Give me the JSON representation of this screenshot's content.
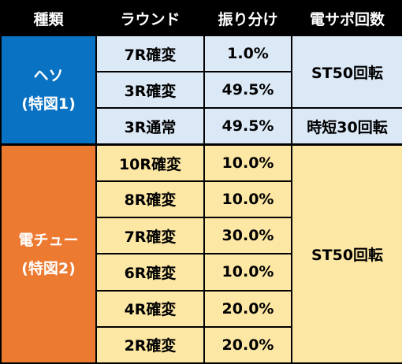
{
  "headers": [
    "種類",
    "ラウンド",
    "振り分け",
    "電サポ回数"
  ],
  "heso": {
    "label_line1": "ヘソ",
    "label_line2": "(特図1)",
    "rows": [
      {
        "round": "7R確変",
        "share": "1.0%"
      },
      {
        "round": "3R確変",
        "share": "49.5%"
      },
      {
        "round": "3R通常",
        "share": "49.5%"
      }
    ],
    "support_a": "ST50回転",
    "support_b": "時短30回転"
  },
  "denchu": {
    "label_line1": "電チュー",
    "label_line2": "(特図2)",
    "rows": [
      {
        "round": "10R確変",
        "share": "10.0%"
      },
      {
        "round": "8R確変",
        "share": "10.0%"
      },
      {
        "round": "7R確変",
        "share": "30.0%"
      },
      {
        "round": "6R確変",
        "share": "10.0%"
      },
      {
        "round": "4R確変",
        "share": "20.0%"
      },
      {
        "round": "2R確変",
        "share": "20.0%"
      }
    ],
    "support": "ST50回転"
  },
  "colors": {
    "heso_label": "#0a72c2",
    "denchu_label": "#ec7a30",
    "heso_cell": "#dbe8f6",
    "denchu_cell": "#fde7a4"
  }
}
